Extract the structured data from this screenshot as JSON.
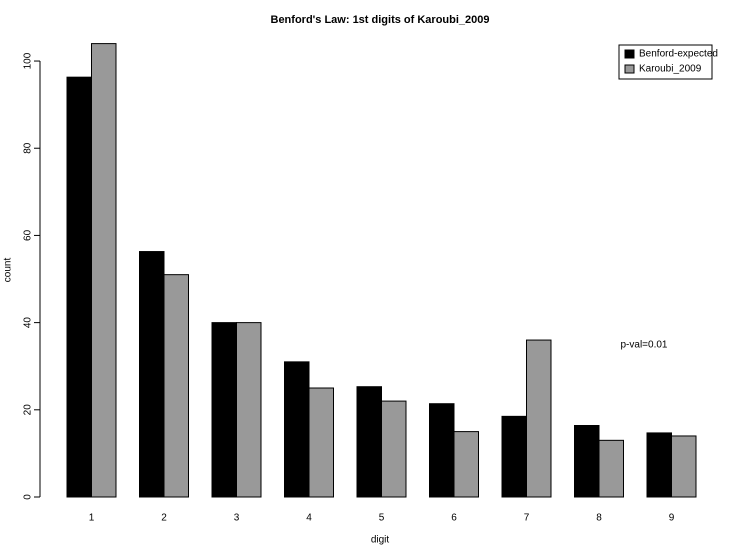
{
  "chart_data": {
    "type": "bar",
    "title": "Benford's Law: 1st digits of Karoubi_2009",
    "x_label": "digit",
    "y_label": "count",
    "categories": [
      "1",
      "2",
      "3",
      "4",
      "5",
      "6",
      "7",
      "8",
      "9"
    ],
    "series": [
      {
        "name": "Benford-expected",
        "color": "#000000",
        "values": [
          96.3,
          56.3,
          40.0,
          31.0,
          25.3,
          21.4,
          18.5,
          16.4,
          14.7
        ]
      },
      {
        "name": "Karoubi_2009",
        "color": "#999999",
        "values": [
          104,
          51,
          40,
          25,
          22,
          15,
          36,
          13,
          14
        ]
      }
    ],
    "ylim": [
      0,
      104
    ],
    "yticks": [
      0,
      20,
      40,
      60,
      80,
      100
    ],
    "annotation": "p-val=0.01",
    "legend": "top-right"
  }
}
